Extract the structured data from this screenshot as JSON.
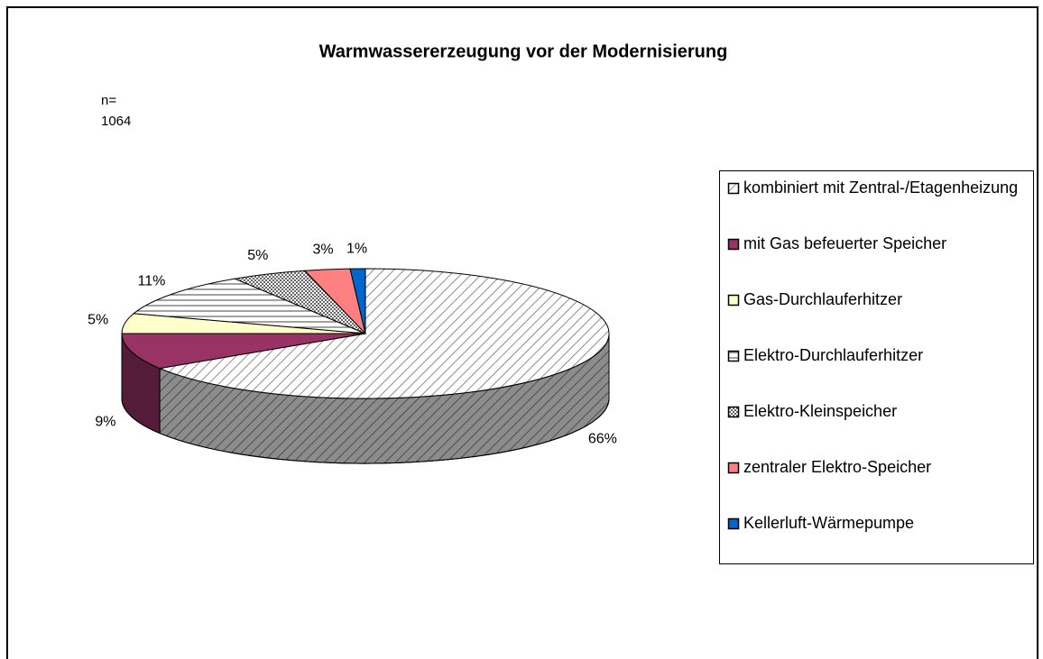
{
  "chart_data": {
    "type": "pie3d",
    "title": "Warmwassererzeugung vor der Modernisierung",
    "annotations": [
      "n=",
      "1064"
    ],
    "categories": [
      "kombiniert mit Zentral-/Etagenheizung",
      "mit Gas befeuerter Speicher",
      "Gas-Durchlauferhitzer",
      "Elektro-Durchlauferhitzer",
      "Elektro-Kleinspeicher",
      "zentraler Elektro-Speicher",
      "Kellerluft-Wärmepumpe"
    ],
    "values": [
      66,
      9,
      5,
      11,
      5,
      3,
      1
    ],
    "value_labels": [
      "66%",
      "9%",
      "5%",
      "11%",
      "5%",
      "3%",
      "1%"
    ],
    "colors": [
      "#ffffff",
      "#993366",
      "#ffffcc",
      "#ffffff",
      "#c0c0c0",
      "#ff8080",
      "#0066cc"
    ],
    "patterns": [
      "diagonal",
      null,
      null,
      "horizontal",
      "dotted",
      null,
      null
    ],
    "legend": "right"
  }
}
